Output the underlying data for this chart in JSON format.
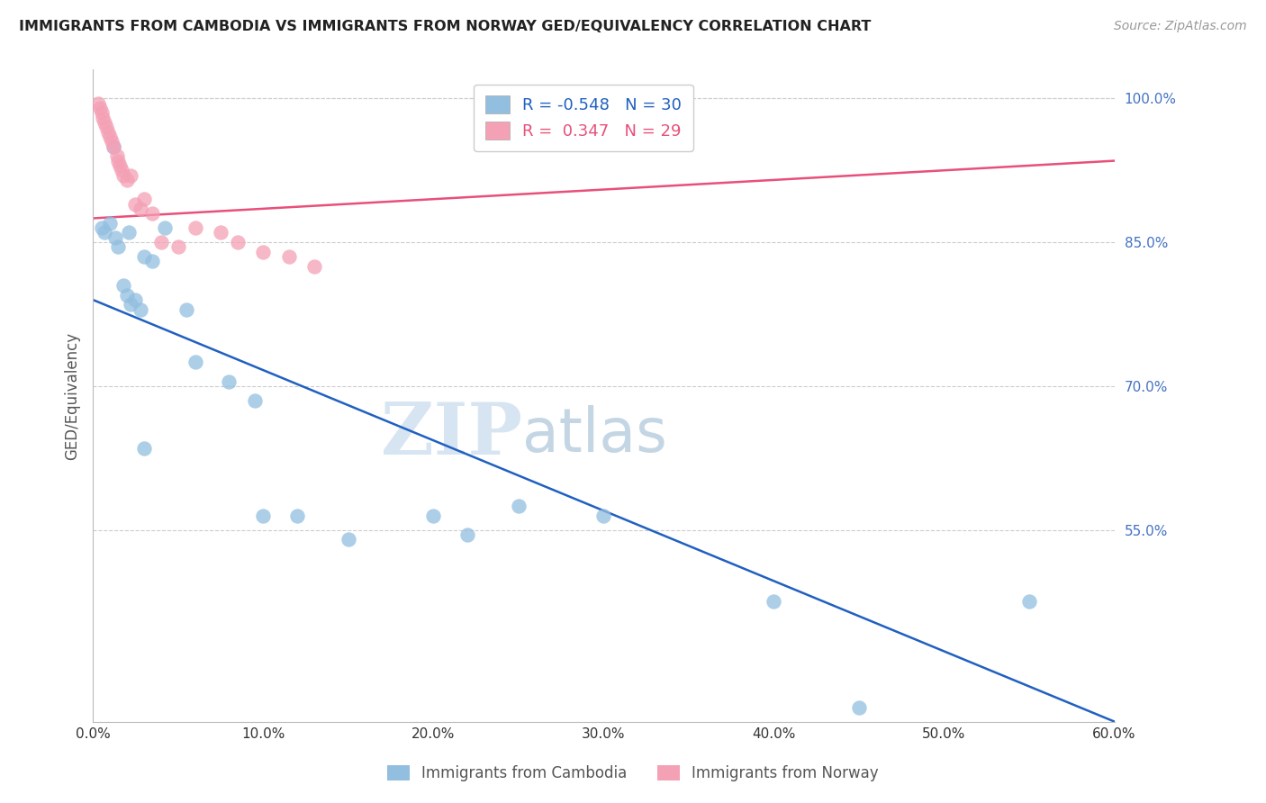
{
  "title": "IMMIGRANTS FROM CAMBODIA VS IMMIGRANTS FROM NORWAY GED/EQUIVALENCY CORRELATION CHART",
  "source": "Source: ZipAtlas.com",
  "ylabel": "GED/Equivalency",
  "legend_label_blue": "Immigrants from Cambodia",
  "legend_label_pink": "Immigrants from Norway",
  "R_blue": -0.548,
  "N_blue": 30,
  "R_pink": 0.347,
  "N_pink": 29,
  "x_min": 0.0,
  "x_max": 60.0,
  "y_min": 35.0,
  "y_max": 103.0,
  "y_ticks": [
    55.0,
    70.0,
    85.0,
    100.0
  ],
  "y_tick_right_bottom": 60.0,
  "x_ticks": [
    0.0,
    10.0,
    20.0,
    30.0,
    40.0,
    50.0,
    60.0
  ],
  "color_blue": "#92BEE0",
  "color_pink": "#F4A0B5",
  "line_color_blue": "#2060C0",
  "line_color_pink": "#E8507A",
  "background_color": "#FFFFFF",
  "watermark_zip": "ZIP",
  "watermark_atlas": "atlas",
  "scatter_blue_x": [
    0.5,
    0.7,
    1.0,
    1.2,
    1.3,
    1.5,
    1.8,
    2.0,
    2.1,
    2.2,
    2.5,
    2.8,
    3.0,
    3.5,
    4.2,
    5.5,
    6.0,
    8.0,
    9.5,
    10.0,
    12.0,
    15.0,
    20.0,
    22.0,
    25.0,
    30.0,
    40.0,
    45.0,
    55.0,
    3.0
  ],
  "scatter_blue_y": [
    86.5,
    86.0,
    87.0,
    95.0,
    85.5,
    84.5,
    80.5,
    79.5,
    86.0,
    78.5,
    79.0,
    78.0,
    83.5,
    83.0,
    86.5,
    78.0,
    72.5,
    70.5,
    68.5,
    56.5,
    56.5,
    54.0,
    56.5,
    54.5,
    57.5,
    56.5,
    47.5,
    36.5,
    47.5,
    63.5
  ],
  "scatter_pink_x": [
    0.3,
    0.4,
    0.5,
    0.6,
    0.7,
    0.8,
    0.9,
    1.0,
    1.1,
    1.2,
    1.4,
    1.5,
    1.6,
    1.7,
    1.8,
    2.0,
    2.2,
    2.5,
    2.8,
    3.0,
    3.5,
    4.0,
    5.0,
    6.0,
    7.5,
    8.5,
    10.0,
    11.5,
    13.0
  ],
  "scatter_pink_y": [
    99.5,
    99.0,
    98.5,
    98.0,
    97.5,
    97.0,
    96.5,
    96.0,
    95.5,
    95.0,
    94.0,
    93.5,
    93.0,
    92.5,
    92.0,
    91.5,
    92.0,
    89.0,
    88.5,
    89.5,
    88.0,
    85.0,
    84.5,
    86.5,
    86.0,
    85.0,
    84.0,
    83.5,
    82.5
  ],
  "blue_line_x0": 0.0,
  "blue_line_y0": 79.0,
  "blue_line_x1": 60.0,
  "blue_line_y1": 35.0,
  "pink_line_x0": 0.0,
  "pink_line_y0": 87.5,
  "pink_line_x1": 60.0,
  "pink_line_y1": 93.5
}
